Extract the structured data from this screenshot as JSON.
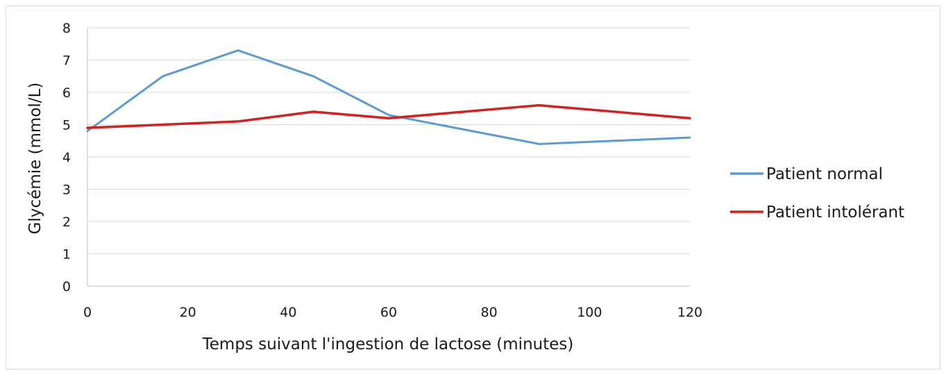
{
  "chart_data": {
    "type": "line",
    "title": "",
    "xlabel": "Temps suivant l'ingestion de lactose (minutes)",
    "ylabel": "Glycémie (mmol/L)",
    "xlim": [
      0,
      120
    ],
    "ylim": [
      0,
      8
    ],
    "xticks": [
      0,
      20,
      40,
      60,
      80,
      100,
      120
    ],
    "yticks": [
      0,
      1,
      2,
      3,
      4,
      5,
      6,
      7,
      8
    ],
    "grid": "horizontal",
    "legend_position": "right",
    "series": [
      {
        "name": "Patient normal",
        "color": "#5b9bd5",
        "x": [
          0,
          15,
          30,
          45,
          60,
          90,
          120
        ],
        "values": [
          4.8,
          6.5,
          7.3,
          6.5,
          5.3,
          4.4,
          4.6
        ]
      },
      {
        "name": "Patient intolérant",
        "color": "#d42020",
        "x": [
          0,
          15,
          30,
          45,
          60,
          90,
          120
        ],
        "values": [
          4.9,
          5.0,
          5.1,
          5.4,
          5.2,
          5.6,
          5.2
        ]
      }
    ]
  }
}
